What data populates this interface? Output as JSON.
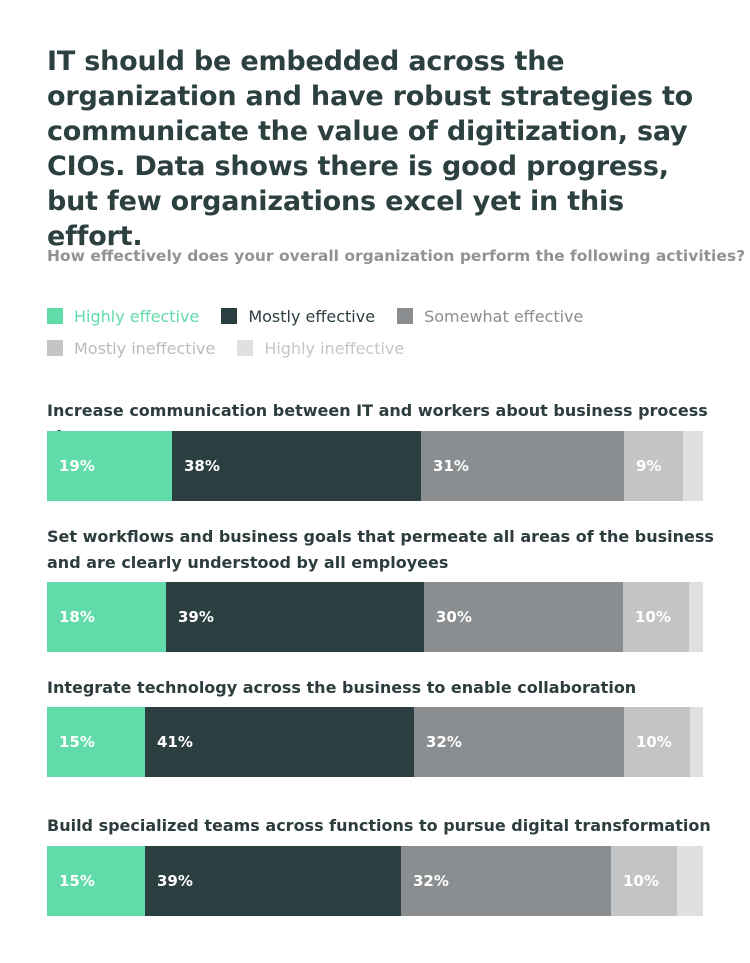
{
  "header": {
    "title": "IT should be embedded across the organization and have robust strategies to communicate the value of digitization, say CIOs. Data shows there is good progress, but few organizations excel yet in this effort.",
    "question": "How effectively does your overall organization perform the following activities?"
  },
  "legend": [
    {
      "label": "Highly effective",
      "color": "#61dba9",
      "text_color": "#61dba9"
    },
    {
      "label": "Mostly effective",
      "color": "#2b3e40",
      "text_color": "#2b3e40"
    },
    {
      "label": "Somewhat effective",
      "color": "#8b8e90",
      "text_color": "#8b8e90"
    },
    {
      "label": "Mostly ineffective",
      "color": "#c2c4c6",
      "text_color": "#b9bbbd"
    },
    {
      "label": "Highly ineffective",
      "color": "#dfe0e1",
      "text_color": "#c4c6c8"
    }
  ],
  "chart_data": {
    "type": "bar",
    "orientation": "horizontal",
    "stacked": true,
    "grid": false,
    "legend_placement": "top-left",
    "series": [
      {
        "name": "Highly effective",
        "color": "#61dba9",
        "values": [
          19,
          18,
          15,
          15
        ]
      },
      {
        "name": "Mostly effective",
        "color": "#2b3e40",
        "values": [
          38,
          39,
          41,
          39
        ]
      },
      {
        "name": "Somewhat effective",
        "color": "#8b8e90",
        "values": [
          31,
          30,
          32,
          32
        ]
      },
      {
        "name": "Mostly ineffective",
        "color": "#c2c4c6",
        "values": [
          9,
          10,
          10,
          10
        ]
      },
      {
        "name": "Highly ineffective",
        "color": "#dfe0e1",
        "values": [
          3,
          2,
          2,
          4
        ]
      }
    ],
    "categories": [
      "Increase communication between IT and workers about business process changes",
      "Set workflows and business goals that permeate all areas of the business and are clearly understood by all employees",
      "Integrate technology across the business to enable collaboration",
      "Build specialized teams across functions to pursue digital transformation"
    ],
    "data_labels": [
      [
        "19%",
        "38%",
        "31%",
        "9%",
        ""
      ],
      [
        "18%",
        "39%",
        "30%",
        "10%",
        ""
      ],
      [
        "15%",
        "41%",
        "32%",
        "10%",
        ""
      ],
      [
        "15%",
        "39%",
        "32%",
        "10%",
        ""
      ]
    ]
  }
}
